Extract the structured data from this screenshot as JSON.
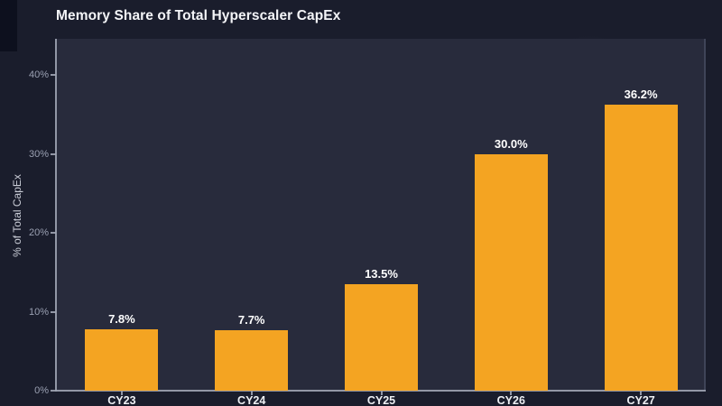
{
  "chart_data": {
    "type": "bar",
    "title": "Memory Share of Total Hyperscaler CapEx",
    "categories": [
      "CY23",
      "CY24",
      "CY25",
      "CY26",
      "CY27"
    ],
    "values": [
      7.8,
      7.7,
      13.5,
      30.0,
      36.2
    ],
    "data_labels": [
      "7.8%",
      "7.7%",
      "13.5%",
      "30.0%",
      "36.2%"
    ],
    "xlabel": "",
    "ylabel": "% of Total CapEx",
    "ylim": [
      0,
      44.6
    ],
    "yticks": [
      0,
      10,
      20,
      30,
      40
    ],
    "ytick_labels": [
      "0%",
      "10%",
      "20%",
      "30%",
      "40%"
    ],
    "grid": false,
    "legend": null,
    "colors": {
      "bar": "#f4a422",
      "outer_background": "#1a1d2c",
      "plot_background": "#282b3c",
      "axis_line": "#9ea4b3",
      "tick_label": "#9aa0b2",
      "axis_title": "#c9ccd6",
      "category_label": "#eef0f4",
      "value_label": "#ffffff",
      "title": "#f4f5f8"
    }
  }
}
